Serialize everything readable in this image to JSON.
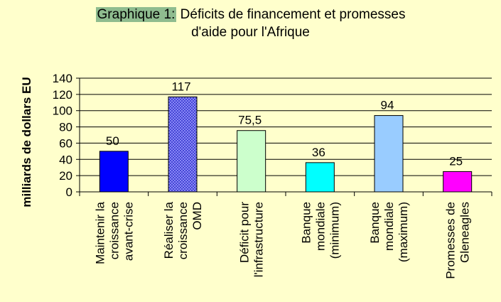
{
  "chart_data": {
    "type": "bar",
    "title_prefix": "Graphique 1:",
    "title_line1": " Déficits de financement et promesses",
    "title_line2": "d'aide pour l'Afrique",
    "ylabel": "milliards de dollars EU",
    "xlabel": "",
    "ylim": [
      0,
      140
    ],
    "yticks": [
      0,
      20,
      40,
      60,
      80,
      100,
      120,
      140
    ],
    "grid": true,
    "categories": [
      [
        "Maintenir la",
        "croissance",
        "avant-crise"
      ],
      [
        "Réaliser la",
        "croissance",
        "OMD"
      ],
      [
        "Déficit pour",
        "l'infrastructure"
      ],
      [
        "Banque",
        "mondiale",
        "(minimum)"
      ],
      [
        "Banque",
        "mondiale",
        "(maximum)"
      ],
      [
        "Promesses de",
        "Gleneagles"
      ]
    ],
    "values": [
      50,
      117,
      75.5,
      36,
      94,
      25
    ],
    "value_labels": [
      "50",
      "117",
      "75,5",
      "36",
      "94",
      "25"
    ],
    "colors": [
      "#0000FF",
      "#3333CC",
      "#CCFFCC",
      "#00FFFF",
      "#99CCFF",
      "#FF00FF"
    ],
    "patterns": [
      "solid",
      "hatched",
      "solid",
      "solid",
      "solid",
      "solid"
    ]
  }
}
